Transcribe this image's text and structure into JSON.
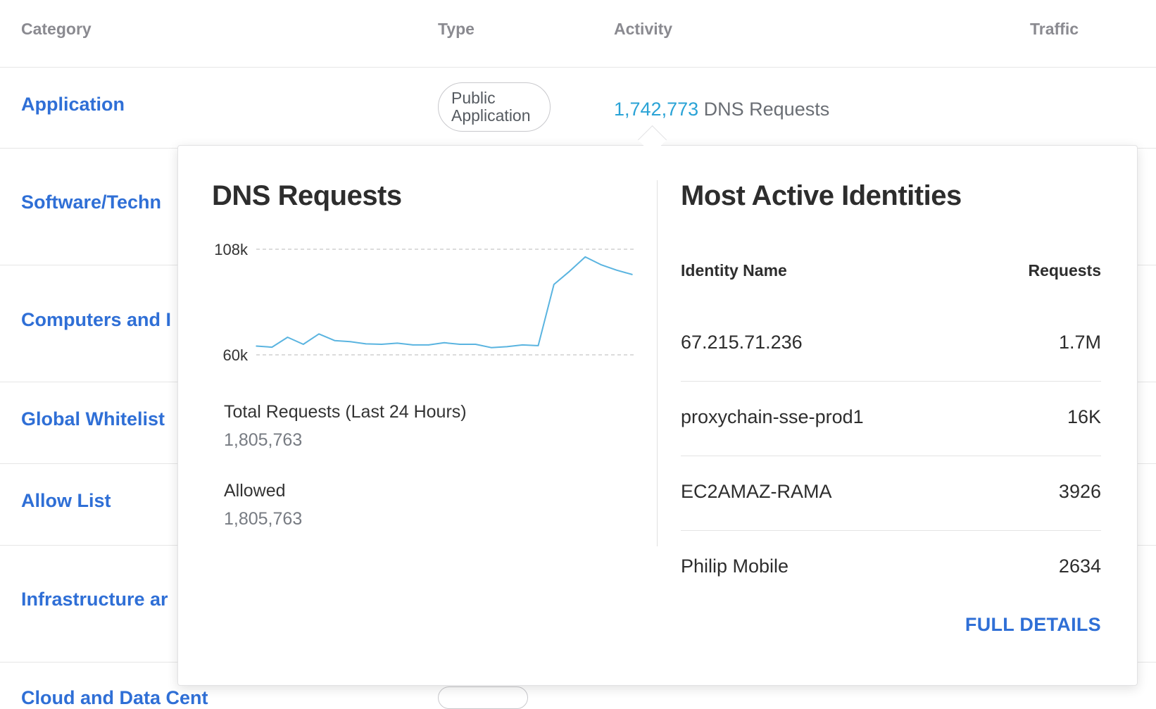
{
  "table": {
    "headers": {
      "category": "Category",
      "type": "Type",
      "activity": "Activity",
      "traffic": "Traffic"
    },
    "rows": [
      {
        "category": "Application",
        "type": "Public Application",
        "activity_count": "1,742,773",
        "activity_label": "DNS Requests"
      },
      {
        "category": "Software/Techn"
      },
      {
        "category": "Computers and I"
      },
      {
        "category": "Global Whitelist"
      },
      {
        "category": "Allow List"
      },
      {
        "category": "Infrastructure ar"
      },
      {
        "category": "Cloud and Data Cent"
      }
    ]
  },
  "popover": {
    "dns": {
      "title": "DNS Requests",
      "total_label": "Total Requests (Last 24 Hours)",
      "total_value": "1,805,763",
      "allowed_label": "Allowed",
      "allowed_value": "1,805,763"
    },
    "identities": {
      "title": "Most Active Identities",
      "col_name": "Identity Name",
      "col_requests": "Requests",
      "rows": [
        {
          "name": "67.215.71.236",
          "requests": "1.7M"
        },
        {
          "name": "proxychain-sse-prod1",
          "requests": "16K"
        },
        {
          "name": "EC2AMAZ-RAMA",
          "requests": "3926"
        },
        {
          "name": "Philip Mobile",
          "requests": "2634"
        }
      ],
      "full_details": "FULL DETAILS"
    }
  },
  "chart_data": {
    "type": "line",
    "title": "DNS Requests",
    "xlabel": "",
    "ylabel": "",
    "yticks": [
      "108k",
      "60k"
    ],
    "ylim": [
      60000,
      108000
    ],
    "color": "#5ab4e0",
    "series": [
      {
        "values": [
          64000,
          63500,
          68000,
          64800,
          69500,
          66500,
          66000,
          65000,
          64800,
          65300,
          64500,
          64500,
          65500,
          64800,
          64800,
          63300,
          63700,
          64500,
          64200,
          92000,
          98000,
          104500,
          101000,
          98500,
          96500
        ]
      }
    ]
  }
}
